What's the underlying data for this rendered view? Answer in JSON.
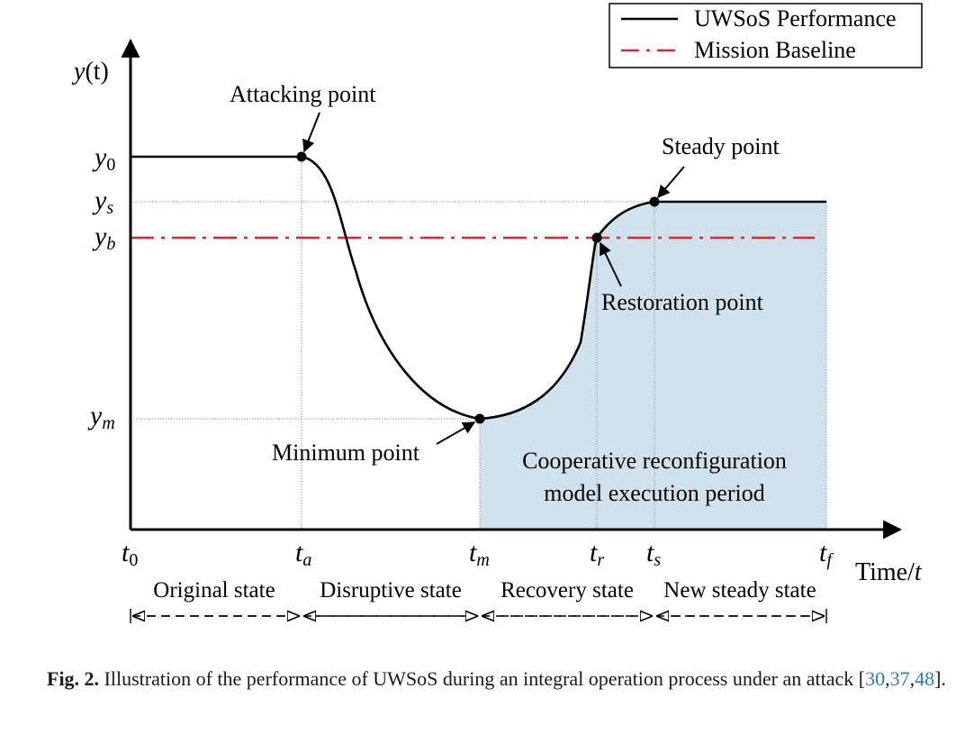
{
  "legend": {
    "items": [
      {
        "label": "UWSoS Performance",
        "style": "solid",
        "color": "#000000"
      },
      {
        "label": "Mission Baseline",
        "style": "dash-dot",
        "color": "#e8202a"
      }
    ]
  },
  "axes": {
    "y_label_main": "y",
    "y_label_paren": "(t)",
    "x_label_main": "Time/",
    "x_label_var": "t"
  },
  "y_ticks": [
    {
      "id": "y0",
      "base": "y",
      "sub": "0"
    },
    {
      "id": "ys",
      "base": "y",
      "sub": "s"
    },
    {
      "id": "yb",
      "base": "y",
      "sub": "b"
    },
    {
      "id": "ym",
      "base": "y",
      "sub": "m"
    }
  ],
  "x_ticks": [
    {
      "id": "t0",
      "base": "t",
      "sub": "0"
    },
    {
      "id": "ta",
      "base": "t",
      "sub": "a"
    },
    {
      "id": "tm",
      "base": "t",
      "sub": "m"
    },
    {
      "id": "tr",
      "base": "t",
      "sub": "r"
    },
    {
      "id": "ts",
      "base": "t",
      "sub": "s"
    },
    {
      "id": "tf",
      "base": "t",
      "sub": "f"
    }
  ],
  "points": {
    "attacking": "Attacking point",
    "steady": "Steady point",
    "restoration": "Restoration point",
    "minimum": "Minimum point"
  },
  "region": {
    "line1": "Cooperative reconfiguration",
    "line2": "model execution period",
    "fill": "#cfe2ee"
  },
  "states": [
    "Original state",
    "Disruptive state",
    "Recovery state",
    "New steady state"
  ],
  "caption": {
    "label": "Fig. 2.",
    "text_before": " Illustration of the performance of UWSoS during an integral operation process under an attack [",
    "ref1": "30",
    "sep1": ",",
    "ref2": "37",
    "sep2": ",",
    "ref3": "48",
    "text_after": "]."
  }
}
